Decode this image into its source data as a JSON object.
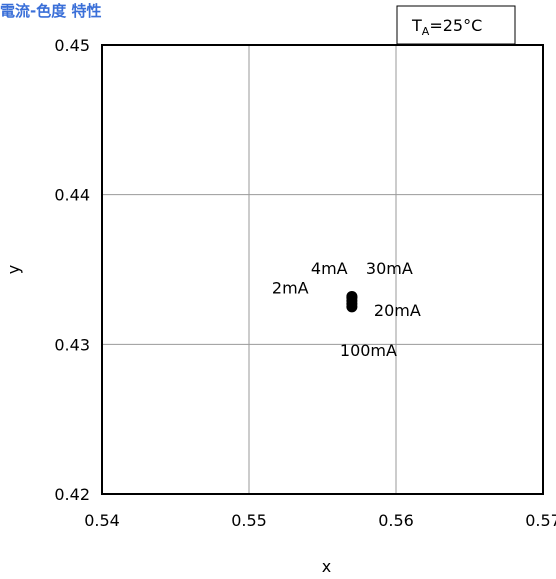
{
  "chart_data": {
    "type": "scatter",
    "title": "電流-色度 特性",
    "condition": {
      "base": "T",
      "subscript": "A",
      "rest": "=25°C"
    },
    "xlabel": "x",
    "ylabel": "y",
    "xlim": [
      0.54,
      0.57
    ],
    "ylim": [
      0.42,
      0.45
    ],
    "xticks": [
      "0.54",
      "0.55",
      "0.56",
      "0.57"
    ],
    "yticks": [
      "0.42",
      "0.43",
      "0.44",
      "0.45"
    ],
    "grid": true,
    "points": [
      {
        "label": "2mA",
        "x": 0.557,
        "y": 0.4332
      },
      {
        "label": "4mA",
        "x": 0.557,
        "y": 0.4331
      },
      {
        "label": "30mA",
        "x": 0.557,
        "y": 0.4329
      },
      {
        "label": "20mA",
        "x": 0.557,
        "y": 0.4327
      },
      {
        "label": "100mA",
        "x": 0.557,
        "y": 0.4325
      }
    ]
  }
}
